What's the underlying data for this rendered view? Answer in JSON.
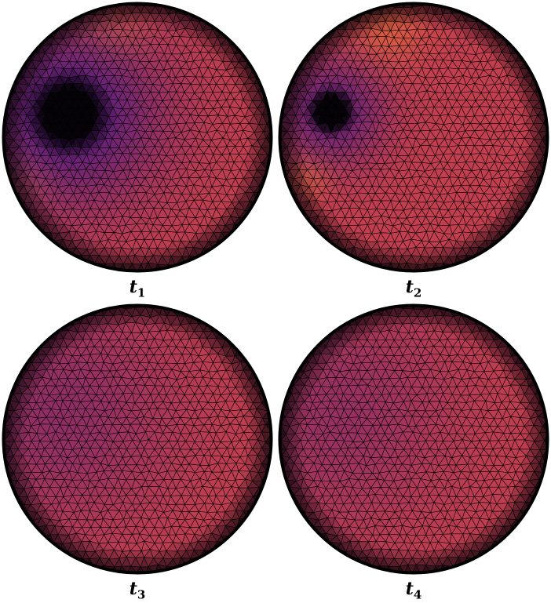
{
  "panels": [
    {
      "id": "p1",
      "label": "t",
      "subscript": "1",
      "blob": {
        "strength": 1.0,
        "size": 1.0,
        "dark": true
      },
      "warm": true
    },
    {
      "id": "p2",
      "label": "t",
      "subscript": "2",
      "blob": {
        "strength": 0.85,
        "size": 0.75,
        "dark": true
      },
      "warm": true
    },
    {
      "id": "p3",
      "label": "t",
      "subscript": "3",
      "blob": {
        "strength": 0.45,
        "size": 1.0,
        "dark": false
      },
      "warm": false
    },
    {
      "id": "p4",
      "label": "t",
      "subscript": "4",
      "blob": {
        "strength": 0.38,
        "size": 1.0,
        "dark": false
      },
      "warm": false
    }
  ],
  "colors": {
    "base": "#c23f4f",
    "warm": "#e06040",
    "violet": "#5a1d7a",
    "dark": "#050208",
    "edge": "#000000"
  }
}
